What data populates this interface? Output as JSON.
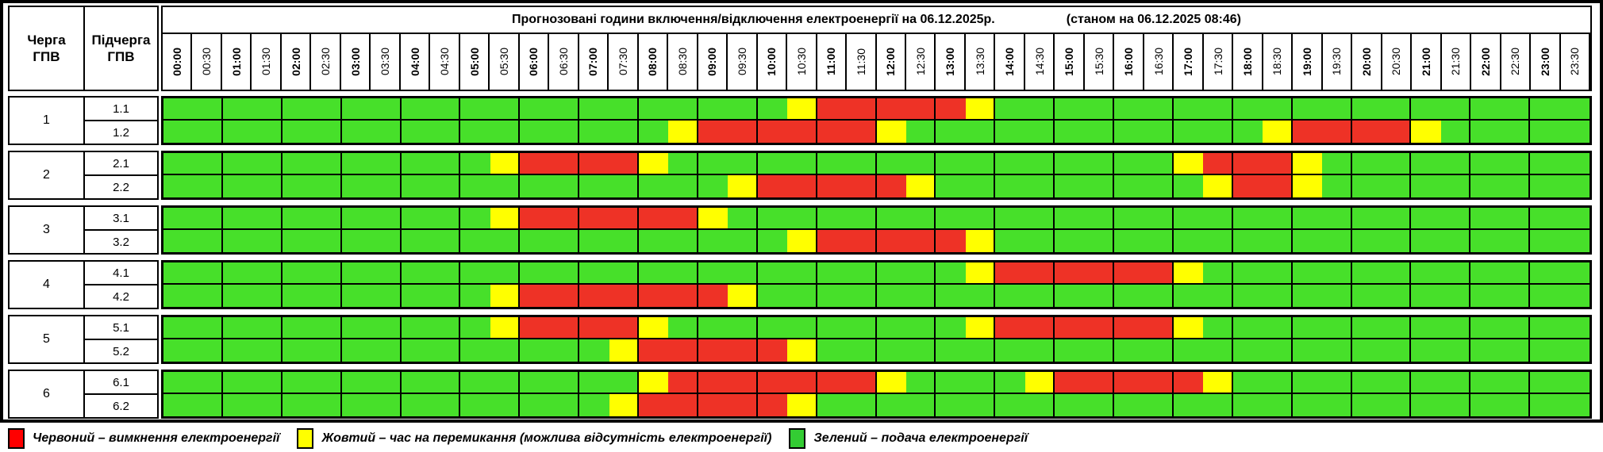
{
  "title": {
    "main": "Прогнозовані години включення/відключення електроенергії на 06.12.2025р.",
    "status": "(станом на 06.12.2025 08:46)"
  },
  "header": {
    "queue_line1": "Черга",
    "queue_line2": "ГПВ",
    "sub_line1": "Підчерга",
    "sub_line2": "ГПВ"
  },
  "schedule": {
    "times": [
      "00:00",
      "00:30",
      "01:00",
      "01:30",
      "02:00",
      "02:30",
      "03:00",
      "03:30",
      "04:00",
      "04:30",
      "05:00",
      "05:30",
      "06:00",
      "06:30",
      "07:00",
      "07:30",
      "08:00",
      "08:30",
      "09:00",
      "09:30",
      "10:00",
      "10:30",
      "11:00",
      "11:30",
      "12:00",
      "12:30",
      "13:00",
      "13:30",
      "14:00",
      "14:30",
      "15:00",
      "15:30",
      "16:00",
      "16:30",
      "17:00",
      "17:30",
      "18:00",
      "18:30",
      "19:00",
      "19:30",
      "20:00",
      "20:30",
      "21:00",
      "21:30",
      "22:00",
      "22:30",
      "23:00",
      "23:30"
    ],
    "colors": {
      "G": "#47E02A",
      "Y": "#FFFF00",
      "R": "#EE3226"
    },
    "queues": [
      {
        "queue": "1",
        "rows": [
          {
            "label": "1.1",
            "pattern": "GGGGGGGGGGGGGGGGGGGGGYRRRRRYGGGGGGGGGGGGGGGGGGGG"
          },
          {
            "label": "1.2",
            "pattern": "GGGGGGGGGGGGGGGGGYRRRRRRYGGGGGGGGGGGGYRRRRYGGGGG"
          }
        ]
      },
      {
        "queue": "2",
        "rows": [
          {
            "label": "2.1",
            "pattern": "GGGGGGGGGGGYRRRRYGGGGGGGGGGGGGGGGGYRRRYGGGGGGGGG"
          },
          {
            "label": "2.2",
            "pattern": "GGGGGGGGGGGGGGGGGGGYRRRRRYGGGGGGGGGYRRYGGGGGGGGG"
          }
        ]
      },
      {
        "queue": "3",
        "rows": [
          {
            "label": "3.1",
            "pattern": "GGGGGGGGGGGYRRRRRRYGGGGGGGGGGGGGGGGGGGGGGGGGGGGG"
          },
          {
            "label": "3.2",
            "pattern": "GGGGGGGGGGGGGGGGGGGGGYRRRRRYGGGGGGGGGGGGGGGGGGGG"
          }
        ]
      },
      {
        "queue": "4",
        "rows": [
          {
            "label": "4.1",
            "pattern": "GGGGGGGGGGGGGGGGGGGGGGGGGGGYRRRRRRYGGGGGGGGGGGGG"
          },
          {
            "label": "4.2",
            "pattern": "GGGGGGGGGGGYRRRRRRRYGGGGGGGGGGGGGGGGGGGGGGGGGGGG"
          }
        ]
      },
      {
        "queue": "5",
        "rows": [
          {
            "label": "5.1",
            "pattern": "GGGGGGGGGGGYRRRRYGGGGGGGGGGYRRRRRRYGGGGGGGGGGGGG"
          },
          {
            "label": "5.2",
            "pattern": "GGGGGGGGGGGGGGGYRRRRRYGGGGGGGGGGGGGGGGGGGGGGGGGG"
          }
        ]
      },
      {
        "queue": "6",
        "rows": [
          {
            "label": "6.1",
            "pattern": "GGGGGGGGGGGGGGGGYRRRRRRRYGGGGYRRRRRYGGGGGGGGGGGG"
          },
          {
            "label": "6.2",
            "pattern": "GGGGGGGGGGGGGGGYRRRRRYGGGGGGGGGGGGGGGGGGGGGGGGGG"
          }
        ]
      }
    ]
  },
  "legend": {
    "items": [
      {
        "color": "#FF0000",
        "label": "Червоний – вимкнення електроенергії"
      },
      {
        "color": "#FFFF00",
        "label": "Жовтий – час на перемикання (можлива відсутність електроенергії)"
      },
      {
        "color": "#33CC33",
        "label": "Зелений – подача електроенергії"
      }
    ]
  }
}
